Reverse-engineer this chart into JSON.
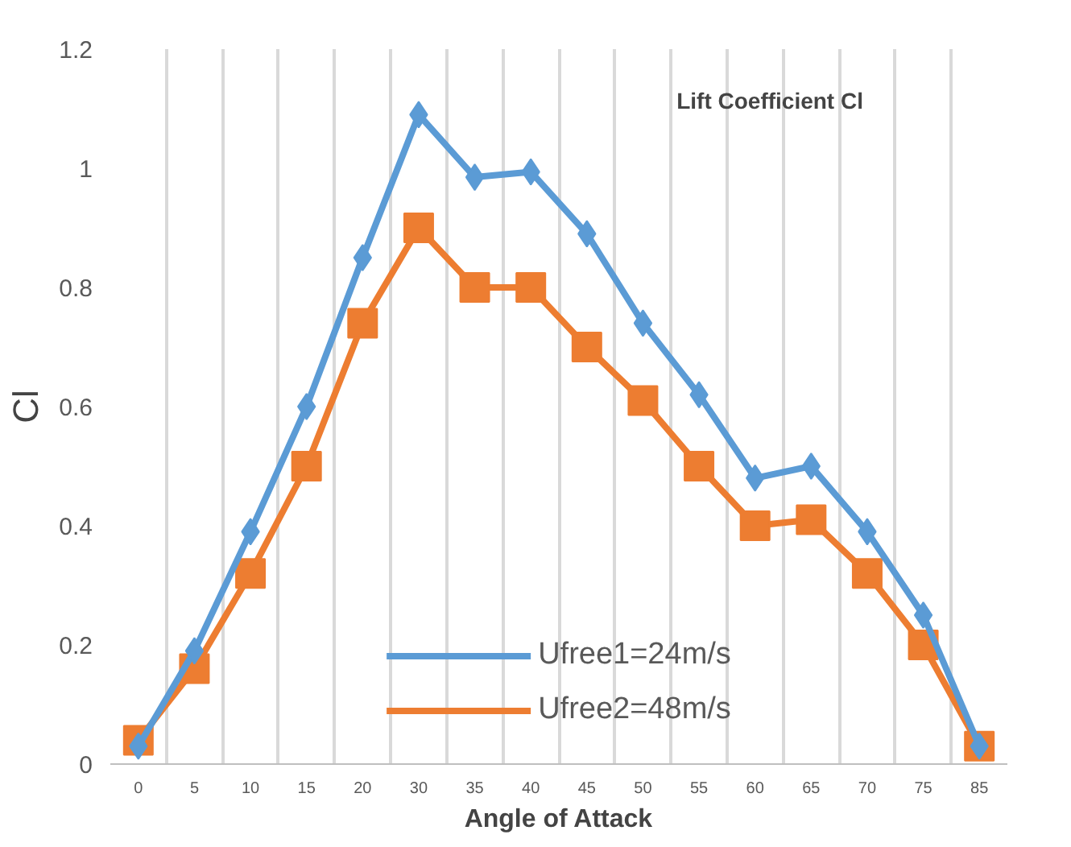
{
  "chart_data": {
    "type": "line",
    "title": "Lift Coefficient Cl",
    "xlabel": "Angle of Attack",
    "ylabel": "Cl",
    "categories": [
      "0",
      "5",
      "10",
      "15",
      "20",
      "30",
      "35",
      "40",
      "45",
      "50",
      "55",
      "60",
      "65",
      "70",
      "75",
      "85"
    ],
    "series": [
      {
        "name": "Ufree1=24m/s",
        "color": "#5b9bd5",
        "marker": "diamond",
        "values": [
          0.03,
          0.19,
          0.39,
          0.6,
          0.85,
          1.09,
          0.985,
          0.994,
          0.89,
          0.74,
          0.62,
          0.48,
          0.5,
          0.39,
          0.25,
          0.03
        ]
      },
      {
        "name": "Ufree2=48m/s",
        "color": "#ed7d31",
        "marker": "square",
        "values": [
          0.04,
          0.16,
          0.32,
          0.5,
          0.74,
          0.9,
          0.8,
          0.8,
          0.7,
          0.61,
          0.5,
          0.4,
          0.41,
          0.32,
          0.2,
          0.03
        ]
      }
    ],
    "ylim": [
      0,
      1.2
    ],
    "yticks": [
      0,
      0.2,
      0.4,
      0.6,
      0.8,
      1,
      1.2
    ],
    "grid": "x",
    "legend": "bottom",
    "line_style": "solid"
  }
}
